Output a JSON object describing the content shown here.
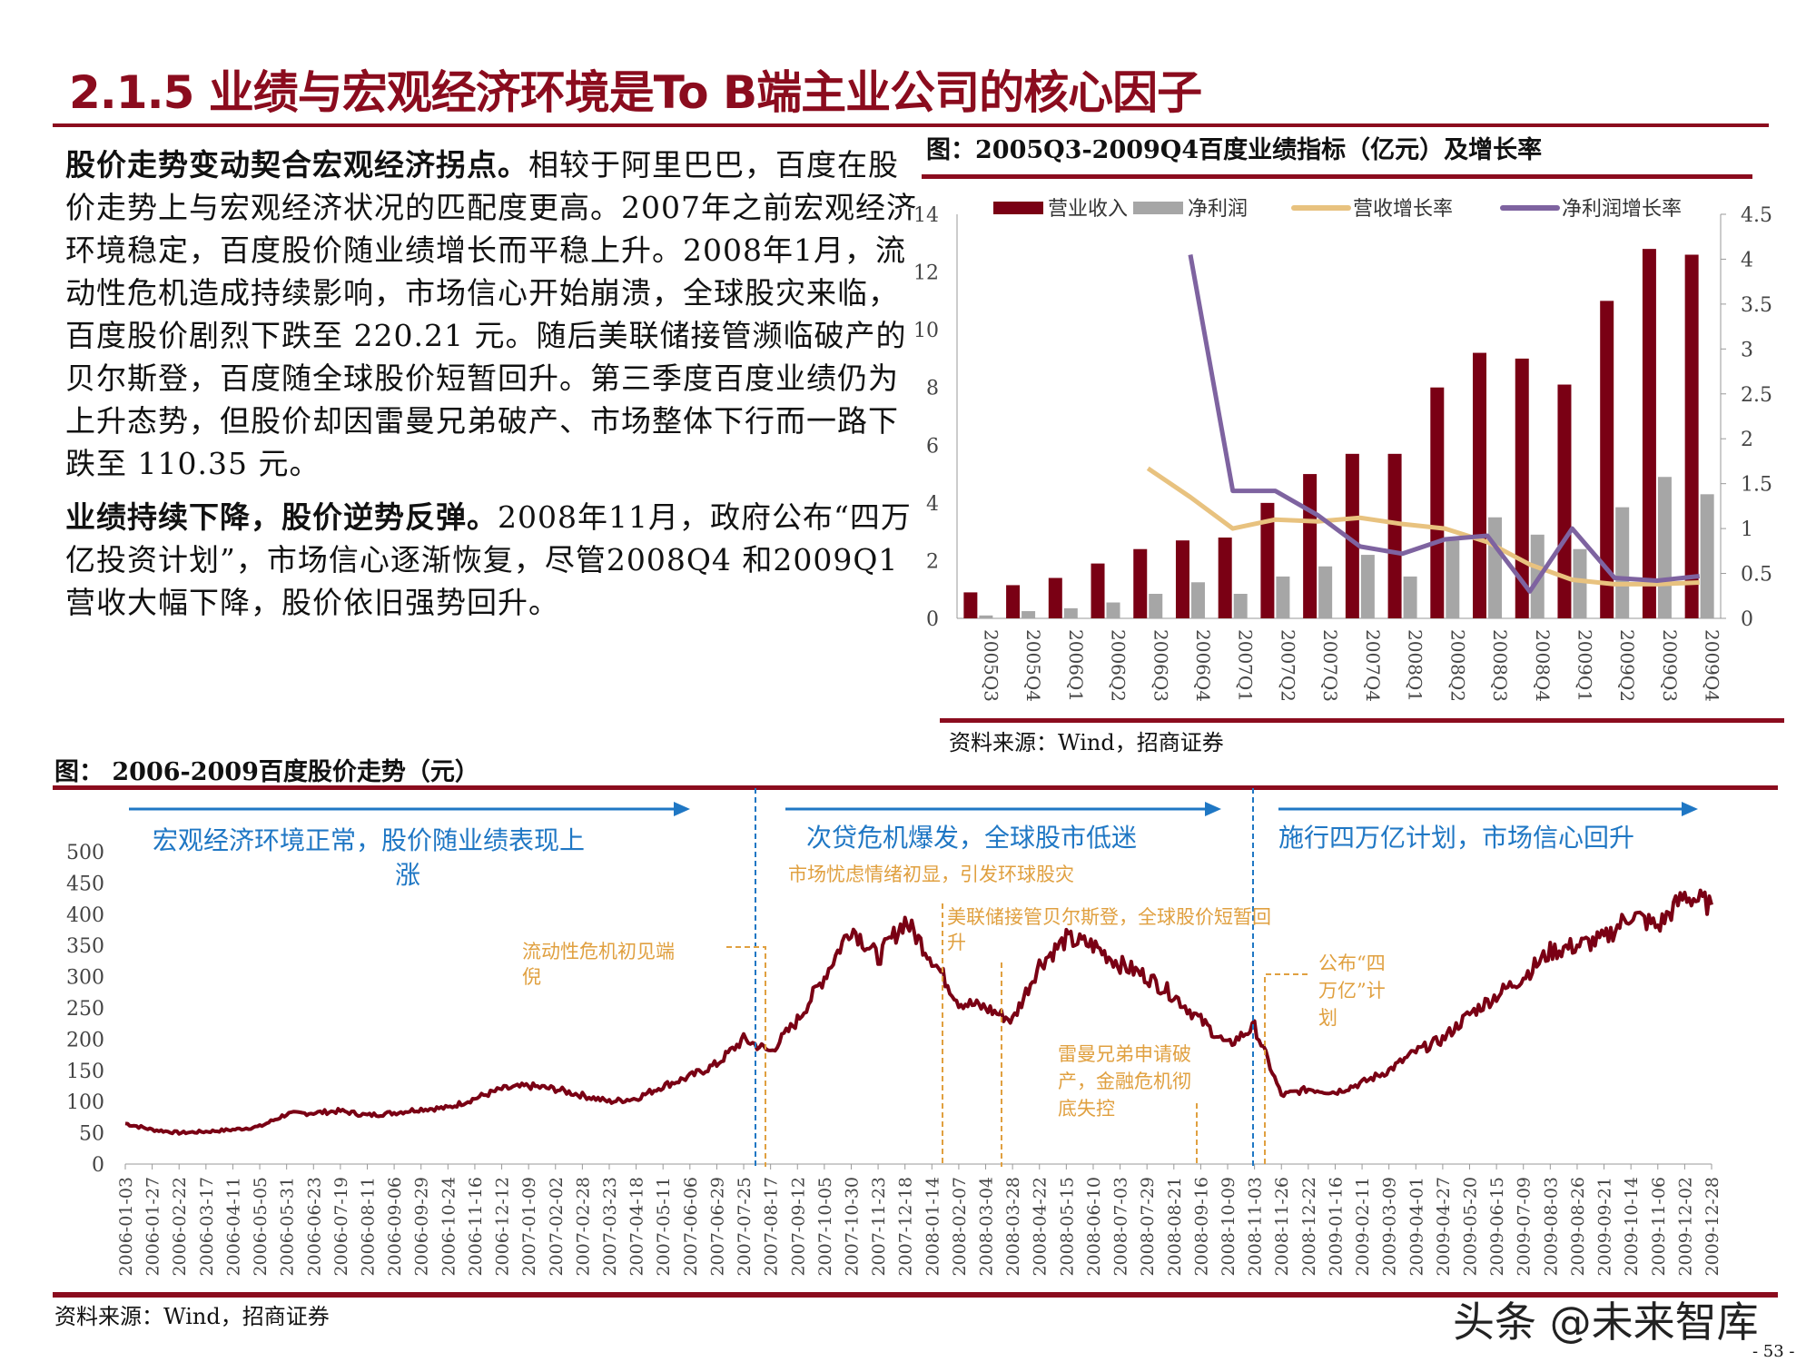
{
  "title": "2.1.5 业绩与宏观经济环境是To B端主业公司的核心因子",
  "paragraphs": [
    {
      "lead": "股价走势变动契合宏观经济拐点。",
      "body": "相较于阿里巴巴，百度在股价走势上与宏观经济状况的匹配度更高。2007年之前宏观经济环境稳定，百度股价随业绩增长而平稳上升。2008年1月，流动性危机造成持续影响，市场信心开始崩溃，全球股灾来临，百度股价剧烈下跌至 220.21 元。随后美联储接管濒临破产的贝尔斯登，百度随全球股价短暂回升。第三季度百度业绩仍为上升态势，但股价却因雷曼兄弟破产、市场整体下行而一路下跌至 110.35 元。"
    },
    {
      "lead": "业绩持续下降，股价逆势反弹。",
      "body": "2008年11月，政府公布“四万亿投资计划”，市场信心逐渐恢复，尽管2008Q4 和2009Q1 营收大幅下降，股价依旧强势回升。"
    }
  ],
  "colors": {
    "accent": "#8b0c1e",
    "revenue": "#7a0014",
    "profit": "#a6a6a6",
    "rev_growth": "#e8c27f",
    "profit_growth": "#7e63a0",
    "blue": "#1f77c4",
    "orange": "#e0a040"
  },
  "chart_data": [
    {
      "type": "bar",
      "title": "图：2005Q3-2009Q4百度业绩指标（亿元）及增长率",
      "source": "资料来源：Wind，招商证券",
      "categories": [
        "2005Q3",
        "2005Q4",
        "2006Q1",
        "2006Q2",
        "2006Q3",
        "2006Q4",
        "2007Q1",
        "2007Q2",
        "2007Q3",
        "2007Q4",
        "2008Q1",
        "2008Q2",
        "2008Q3",
        "2008Q4",
        "2009Q1",
        "2009Q2",
        "2009Q3",
        "2009Q4"
      ],
      "ylim": [
        0,
        14
      ],
      "yticks": [
        0,
        2,
        4,
        6,
        8,
        10,
        12,
        14
      ],
      "y2lim": [
        0,
        4.5
      ],
      "y2ticks": [
        "0",
        "0.5",
        "1",
        "1.5",
        "2",
        "2.5",
        "3",
        "3.5",
        "4",
        "4.5"
      ],
      "legend": "top",
      "series": [
        {
          "name": "营业收入",
          "axis": "left",
          "kind": "bar",
          "values": [
            0.9,
            1.15,
            1.4,
            1.9,
            2.4,
            2.7,
            2.8,
            4.0,
            5.0,
            5.7,
            5.7,
            8.0,
            9.2,
            9.0,
            8.1,
            11.0,
            12.8,
            12.6
          ]
        },
        {
          "name": "净利润",
          "axis": "left",
          "kind": "bar",
          "values": [
            0.1,
            0.25,
            0.35,
            0.55,
            0.85,
            1.25,
            0.85,
            1.45,
            1.8,
            2.2,
            1.45,
            2.7,
            3.5,
            2.9,
            2.4,
            3.85,
            4.9,
            4.3
          ]
        },
        {
          "name": "营收增长率",
          "axis": "right",
          "kind": "line",
          "values": [
            null,
            null,
            null,
            null,
            1.67,
            1.35,
            1.0,
            1.1,
            1.08,
            1.12,
            1.05,
            1.0,
            0.85,
            0.6,
            0.43,
            0.38,
            0.38,
            0.4
          ]
        },
        {
          "name": "净利润增长率",
          "axis": "right",
          "kind": "line",
          "values": [
            null,
            null,
            null,
            null,
            null,
            4.05,
            1.42,
            1.42,
            1.15,
            0.8,
            0.72,
            0.88,
            0.92,
            0.3,
            1.0,
            0.45,
            0.42,
            0.47
          ]
        }
      ]
    },
    {
      "type": "line",
      "title": "图： 2006-2009百度股价走势（元）",
      "source": "资料来源：Wind，招商证券",
      "ylim": [
        0,
        500
      ],
      "yticks": [
        0,
        50,
        100,
        150,
        200,
        250,
        300,
        350,
        400,
        450,
        500
      ],
      "x": [
        "2006-01-03",
        "2006-01-27",
        "2006-02-22",
        "2006-03-17",
        "2006-04-11",
        "2006-05-05",
        "2006-05-31",
        "2006-06-23",
        "2006-07-19",
        "2006-08-11",
        "2006-09-06",
        "2006-09-29",
        "2006-10-24",
        "2006-11-16",
        "2006-12-12",
        "2007-01-09",
        "2007-02-02",
        "2007-02-28",
        "2007-03-23",
        "2007-04-18",
        "2007-05-11",
        "2007-06-06",
        "2007-06-29",
        "2007-07-25",
        "2007-08-17",
        "2007-09-12",
        "2007-10-05",
        "2007-10-30",
        "2007-11-23",
        "2007-12-18",
        "2008-01-14",
        "2008-02-07",
        "2008-03-04",
        "2008-03-28",
        "2008-04-22",
        "2008-05-15",
        "2008-06-10",
        "2008-07-03",
        "2008-07-29",
        "2008-08-21",
        "2008-09-16",
        "2008-10-09",
        "2008-11-03",
        "2008-11-26",
        "2008-12-22",
        "2009-01-16",
        "2009-02-11",
        "2009-03-09",
        "2009-04-01",
        "2009-04-27",
        "2009-05-20",
        "2009-06-15",
        "2009-07-09",
        "2009-08-03",
        "2009-08-26",
        "2009-09-21",
        "2009-10-14",
        "2009-11-06",
        "2009-12-02",
        "2009-12-28"
      ],
      "values": [
        65,
        55,
        50,
        52,
        55,
        60,
        80,
        82,
        85,
        78,
        82,
        88,
        90,
        105,
        120,
        125,
        120,
        110,
        100,
        105,
        125,
        140,
        160,
        200,
        180,
        230,
        300,
        380,
        330,
        390,
        330,
        260,
        250,
        230,
        320,
        360,
        350,
        320,
        300,
        270,
        230,
        190,
        220,
        110,
        120,
        115,
        130,
        150,
        180,
        200,
        240,
        270,
        300,
        340,
        350,
        360,
        400,
        380,
        430,
        415
      ],
      "phases": [
        "宏观经济环境正常，股价随业绩表现上涨",
        "次贷危机爆发，全球股市低迷",
        "施行四万亿计划，市场信心回升"
      ],
      "annotations": [
        "市场忧虑情绪初显，引发环球股灾",
        "流动性危机初见端倪",
        "美联储接管贝尔斯登，全球股价短暂回升",
        "雷曼兄弟申请破产，金融危机彻底失控",
        "公布“四万亿”计划"
      ]
    }
  ],
  "watermark": "头条 @未来智库",
  "page_number": "- 53 -"
}
